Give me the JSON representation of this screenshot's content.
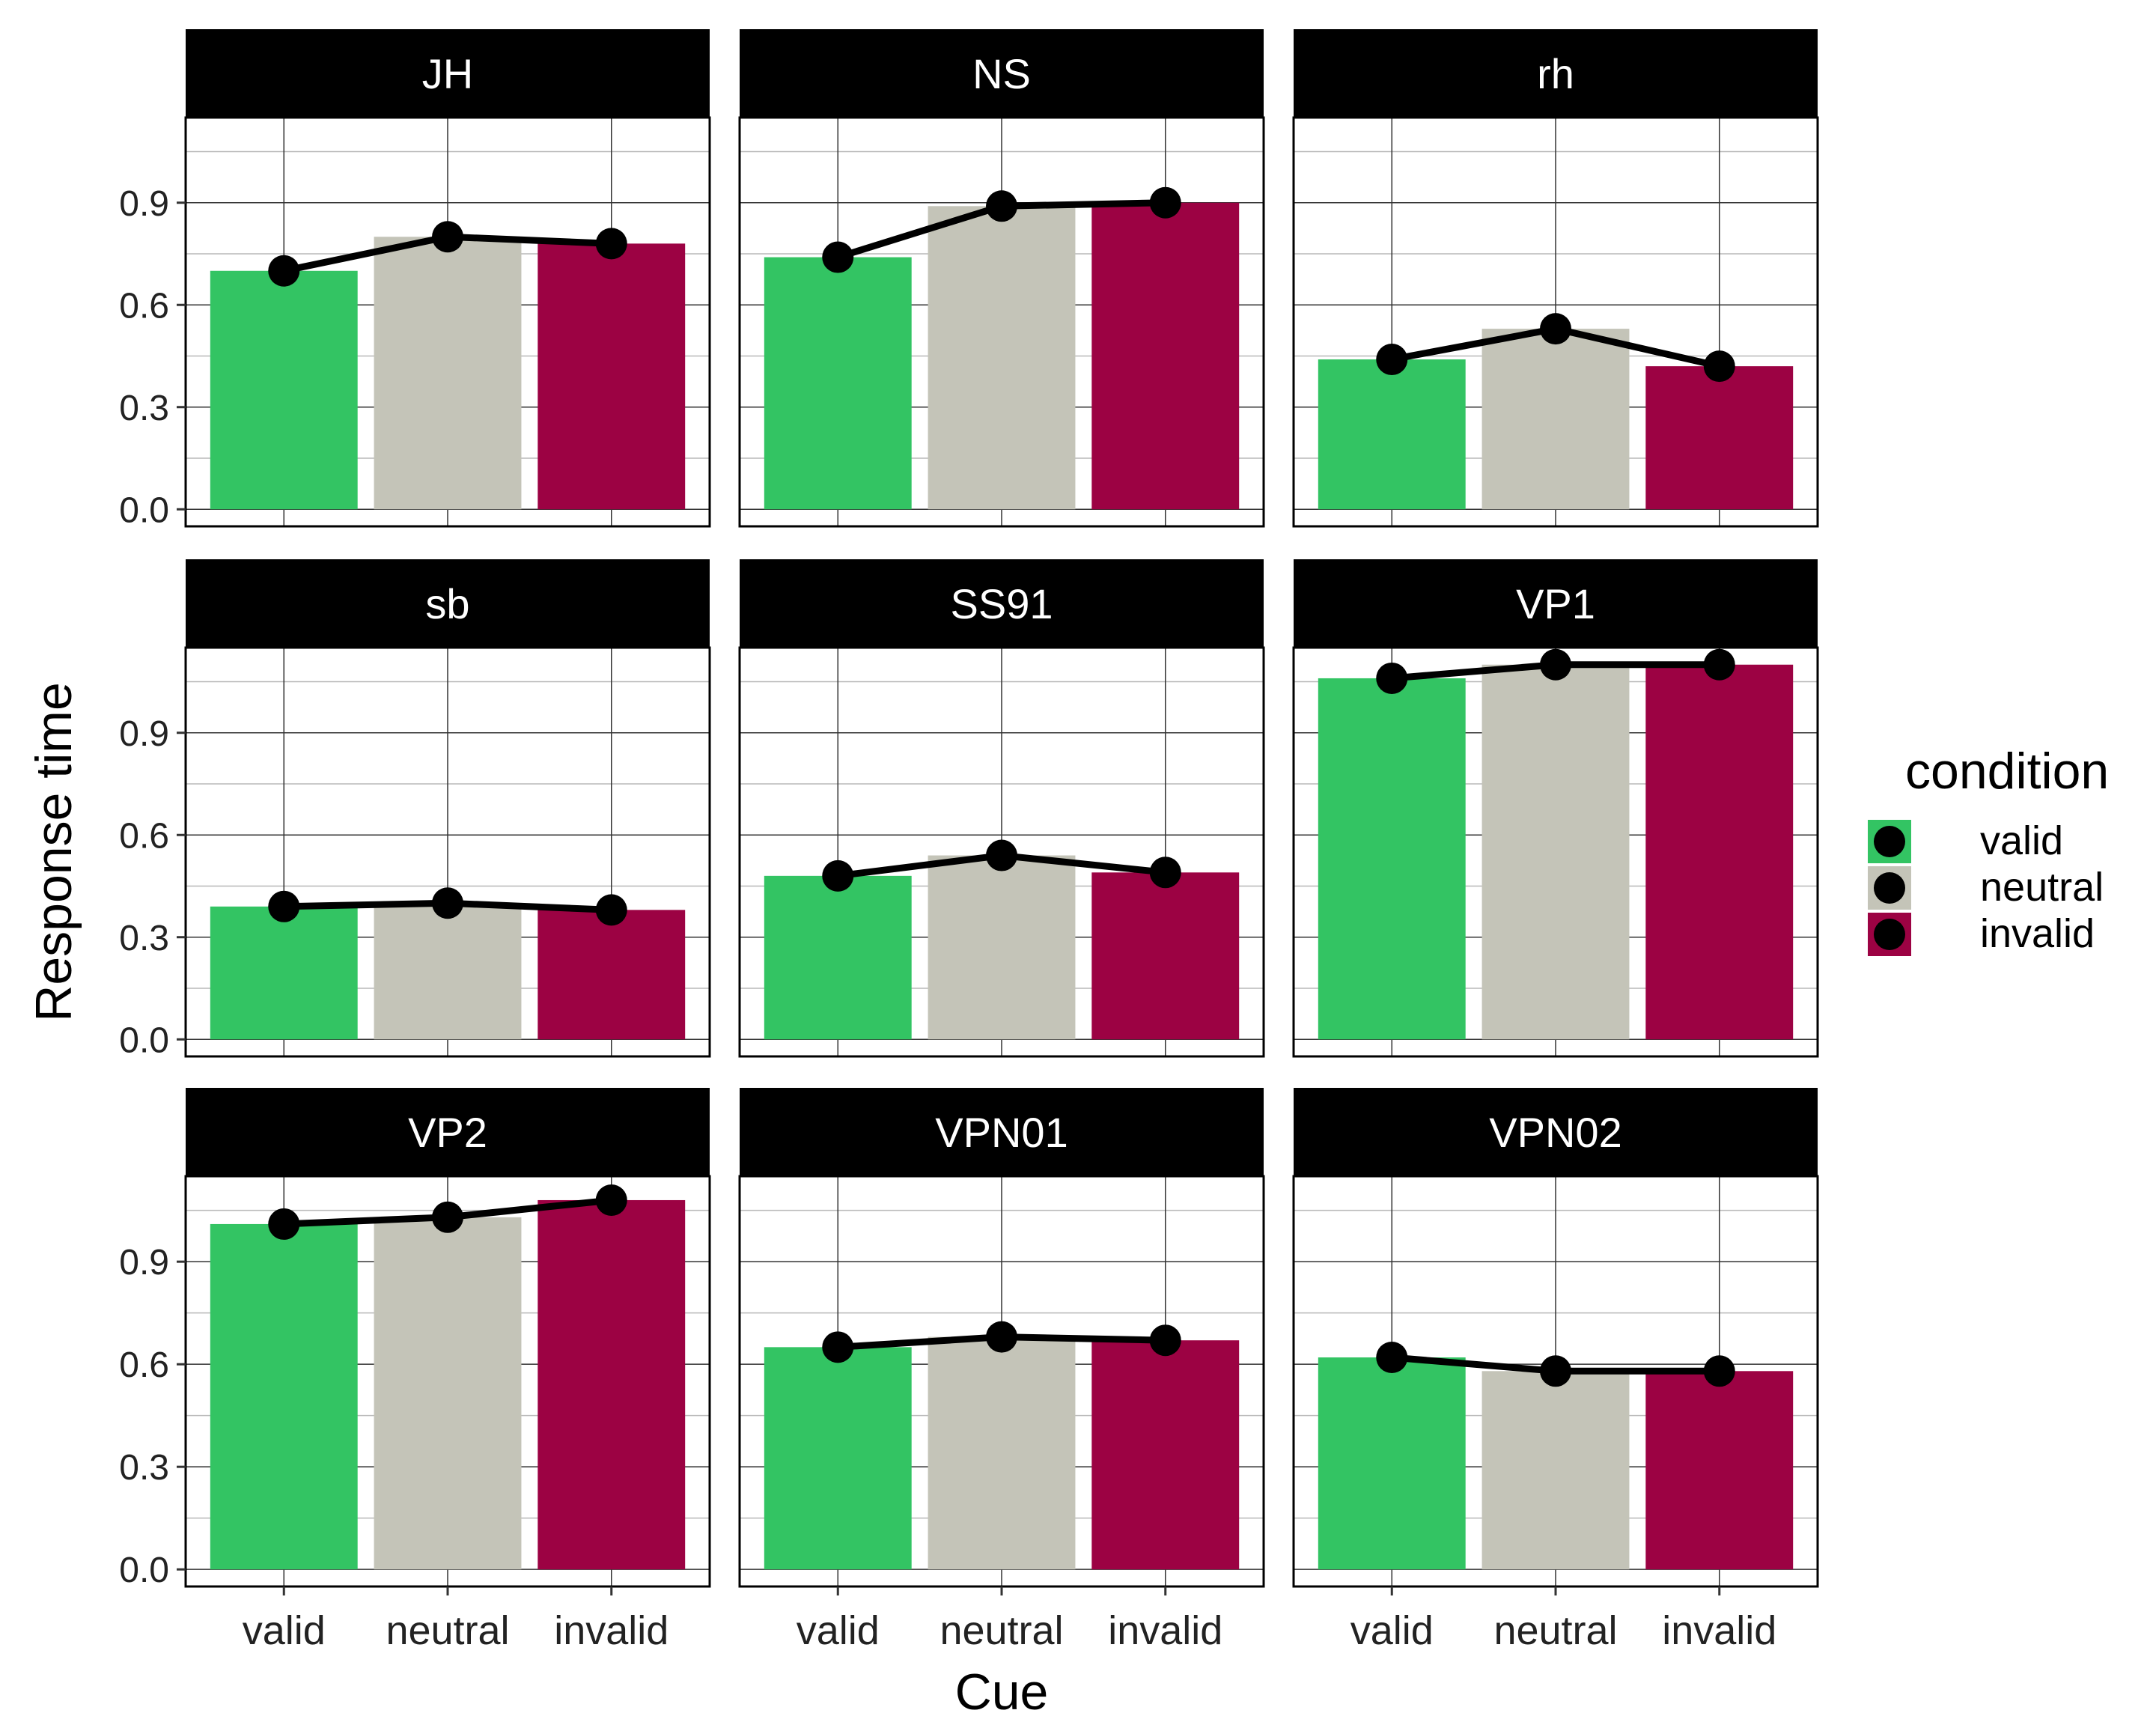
{
  "chart_data": {
    "type": "bar",
    "facet_by": "participant",
    "xlabel": "Cue",
    "ylabel": "Response time",
    "categories": [
      "valid",
      "neutral",
      "invalid"
    ],
    "y_ticks": [
      "0.0",
      "0.3",
      "0.6",
      "0.9"
    ],
    "ylim": [
      -0.05,
      1.15
    ],
    "grid": true,
    "colors": {
      "valid": "#33C463",
      "neutral": "#C4C4B8",
      "invalid": "#9C0243",
      "line": "#000000",
      "strip": "#000000"
    },
    "legend": {
      "title": "condition",
      "position": "right",
      "items": [
        {
          "label": "valid",
          "color": "#33C463"
        },
        {
          "label": "neutral",
          "color": "#C4C4B8"
        },
        {
          "label": "invalid",
          "color": "#9C0243"
        }
      ]
    },
    "panels": [
      {
        "name": "JH",
        "values": [
          0.7,
          0.8,
          0.78
        ]
      },
      {
        "name": "NS",
        "values": [
          0.74,
          0.89,
          0.9
        ]
      },
      {
        "name": "rh",
        "values": [
          0.44,
          0.53,
          0.42
        ]
      },
      {
        "name": "sb",
        "values": [
          0.39,
          0.4,
          0.38
        ]
      },
      {
        "name": "SS91",
        "values": [
          0.48,
          0.54,
          0.49
        ]
      },
      {
        "name": "VP1",
        "values": [
          1.06,
          1.1,
          1.1
        ]
      },
      {
        "name": "VP2",
        "values": [
          1.01,
          1.03,
          1.08
        ]
      },
      {
        "name": "VPN01",
        "values": [
          0.65,
          0.68,
          0.67
        ]
      },
      {
        "name": "VPN02",
        "values": [
          0.62,
          0.58,
          0.58
        ]
      }
    ]
  }
}
